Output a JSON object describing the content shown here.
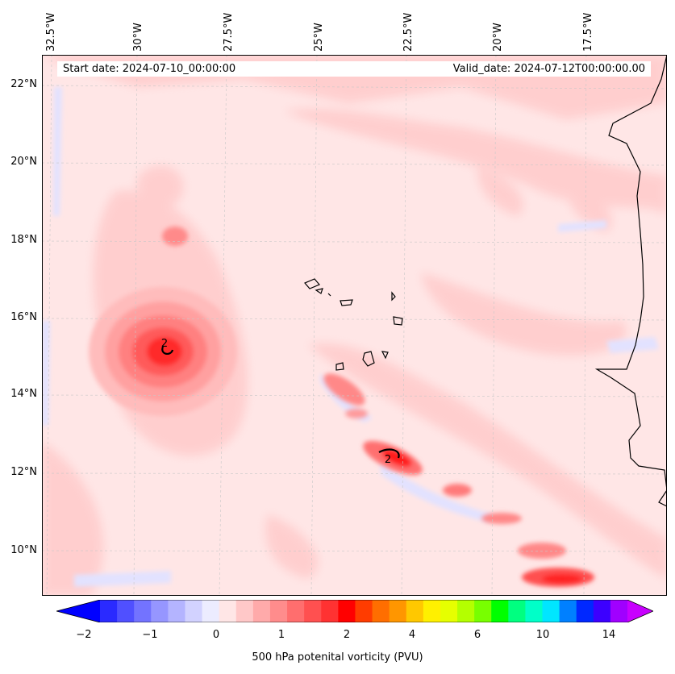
{
  "map": {
    "start_label": "Start date: 2024-07-10_00:00:00",
    "valid_label": "Valid_date: 2024-07-12T00:00:00.00",
    "lon_labels": [
      "32.5°W",
      "30°W",
      "27.5°W",
      "25°W",
      "22.5°W",
      "20°W",
      "17.5°W"
    ],
    "lat_labels": [
      "22°N",
      "20°N",
      "18°N",
      "16°N",
      "14°N",
      "12°N",
      "10°N"
    ],
    "contour_labels": [
      "2",
      "2"
    ]
  },
  "colorbar": {
    "title": "500 hPa potenital vorticity (PVU)",
    "tick_labels": [
      "−2",
      "−1",
      "0",
      "1",
      "2",
      "4",
      "6",
      "10",
      "14"
    ],
    "colors": [
      "#0000ff",
      "#2a2aff",
      "#5050ff",
      "#7373ff",
      "#9696ff",
      "#b4b4ff",
      "#d2d2ff",
      "#ececff",
      "#ffe6e6",
      "#ffc8c8",
      "#ffaaaa",
      "#ff8c8c",
      "#ff6e6e",
      "#ff5050",
      "#ff3232",
      "#ff0000",
      "#ff3c00",
      "#ff6e00",
      "#ff9600",
      "#ffc800",
      "#fff000",
      "#e6ff00",
      "#b4ff00",
      "#78ff00",
      "#00ff00",
      "#00ff80",
      "#00ffc8",
      "#00e6ff",
      "#0080ff",
      "#0028ff",
      "#3c00ff",
      "#a000ff",
      "#c800ff"
    ]
  }
}
